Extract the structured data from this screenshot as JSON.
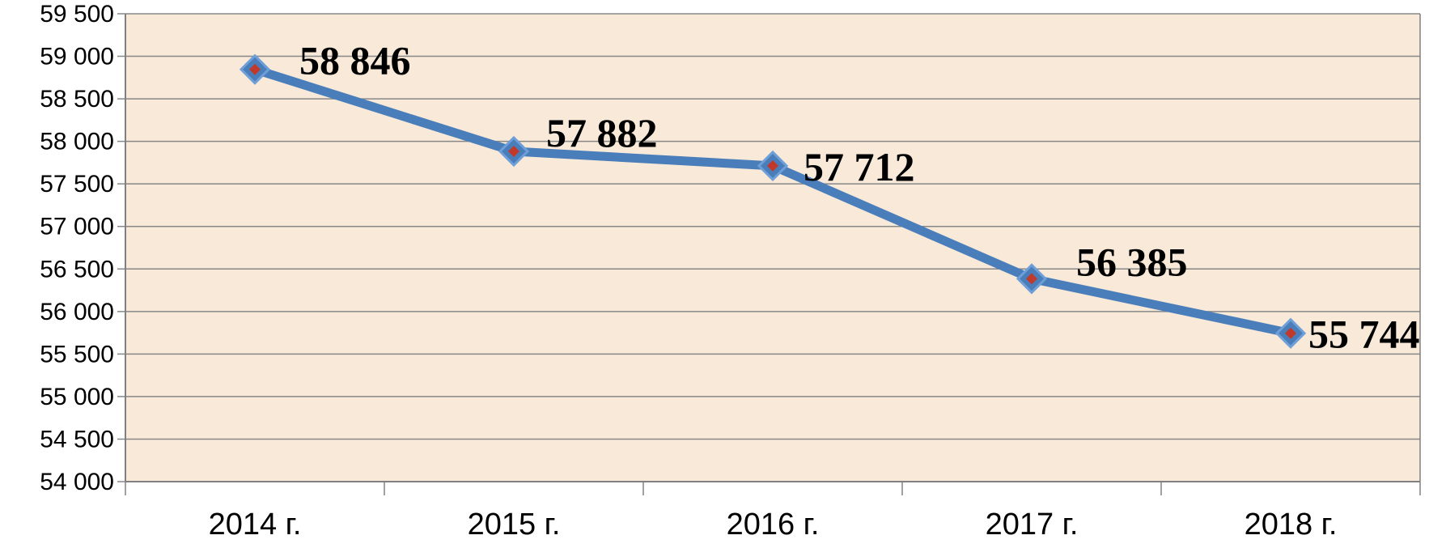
{
  "chart_data": {
    "type": "line",
    "categories": [
      "2014 г.",
      "2015 г.",
      "2016 г.",
      "2017 г.",
      "2018 г."
    ],
    "series": [
      {
        "values": [
          58846,
          57882,
          57712,
          56385,
          55744
        ]
      }
    ],
    "data_labels": [
      "58 846",
      "57 882",
      "57 712",
      "56 385",
      "55 744"
    ],
    "yticks": [
      54000,
      54500,
      55000,
      55500,
      56000,
      56500,
      57000,
      57500,
      58000,
      58500,
      59000,
      59500
    ],
    "ytick_labels": [
      "54 000",
      "54 500",
      "55 000",
      "55 500",
      "56 000",
      "56 500",
      "57 000",
      "57 500",
      "58 000",
      "58 500",
      "59 000",
      "59 500"
    ],
    "ylim": [
      54000,
      59500
    ],
    "title": "",
    "xlabel": "",
    "ylabel": "",
    "grid": true,
    "legend": "none",
    "colors": {
      "plot_background": "#f8e9d8",
      "line": "#4a7ebb",
      "marker_fill": "#4a7ebb",
      "marker_center": "#c0392b",
      "grid": "#888888"
    }
  }
}
